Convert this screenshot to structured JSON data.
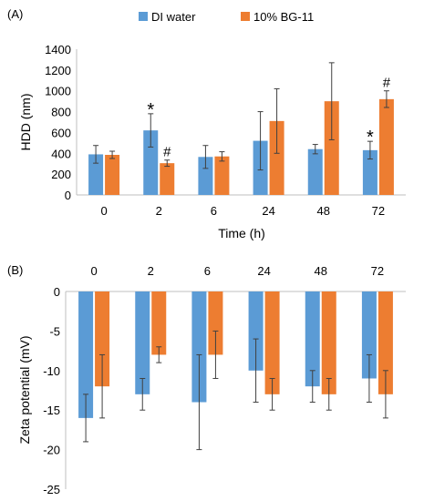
{
  "legend": [
    {
      "name": "DI water",
      "color": "#5B9BD5"
    },
    {
      "name": "10% BG-11",
      "color": "#ED7D31"
    }
  ],
  "chart_data": [
    {
      "panel": "(A)",
      "type": "bar",
      "ylabel": "HDD (nm)",
      "xlabel": "Time (h)",
      "categories": [
        "0",
        "2",
        "6",
        "24",
        "48",
        "72"
      ],
      "ylim": [
        0,
        1400
      ],
      "yticks": [
        0,
        200,
        400,
        600,
        800,
        1000,
        1200,
        1400
      ],
      "grid": false,
      "legend_position": "top",
      "series": [
        {
          "name": "DI water",
          "color": "#5B9BD5",
          "values": [
            390,
            620,
            365,
            520,
            440,
            430
          ],
          "errors": [
            85,
            160,
            110,
            280,
            45,
            85
          ]
        },
        {
          "name": "10% BG-11",
          "color": "#ED7D31",
          "values": [
            385,
            305,
            370,
            710,
            900,
            920
          ],
          "errors": [
            35,
            30,
            45,
            310,
            370,
            80
          ]
        }
      ],
      "annotations": [
        {
          "text": "*",
          "category": "2",
          "series": "DI water"
        },
        {
          "text": "#",
          "category": "2",
          "series": "10% BG-11"
        },
        {
          "text": "*",
          "category": "72",
          "series": "DI water"
        },
        {
          "text": "#",
          "category": "72",
          "series": "10% BG-11"
        }
      ]
    },
    {
      "panel": "(B)",
      "type": "bar",
      "ylabel": "Zeta potential (mV)",
      "xlabel": "",
      "categories": [
        "0",
        "2",
        "6",
        "24",
        "48",
        "72"
      ],
      "ylim": [
        -25,
        0
      ],
      "yticks": [
        0,
        -5,
        -10,
        -15,
        -20,
        -25
      ],
      "grid": false,
      "category_labels_position": "top",
      "series": [
        {
          "name": "DI water",
          "color": "#5B9BD5",
          "values": [
            -16,
            -13,
            -14,
            -10,
            -12,
            -11
          ],
          "errors": [
            3,
            2,
            6,
            4,
            2,
            3
          ]
        },
        {
          "name": "10% BG-11",
          "color": "#ED7D31",
          "values": [
            -12,
            -8,
            -8,
            -13,
            -13,
            -13
          ],
          "errors": [
            4,
            1,
            3,
            2,
            2,
            3
          ]
        }
      ]
    }
  ]
}
